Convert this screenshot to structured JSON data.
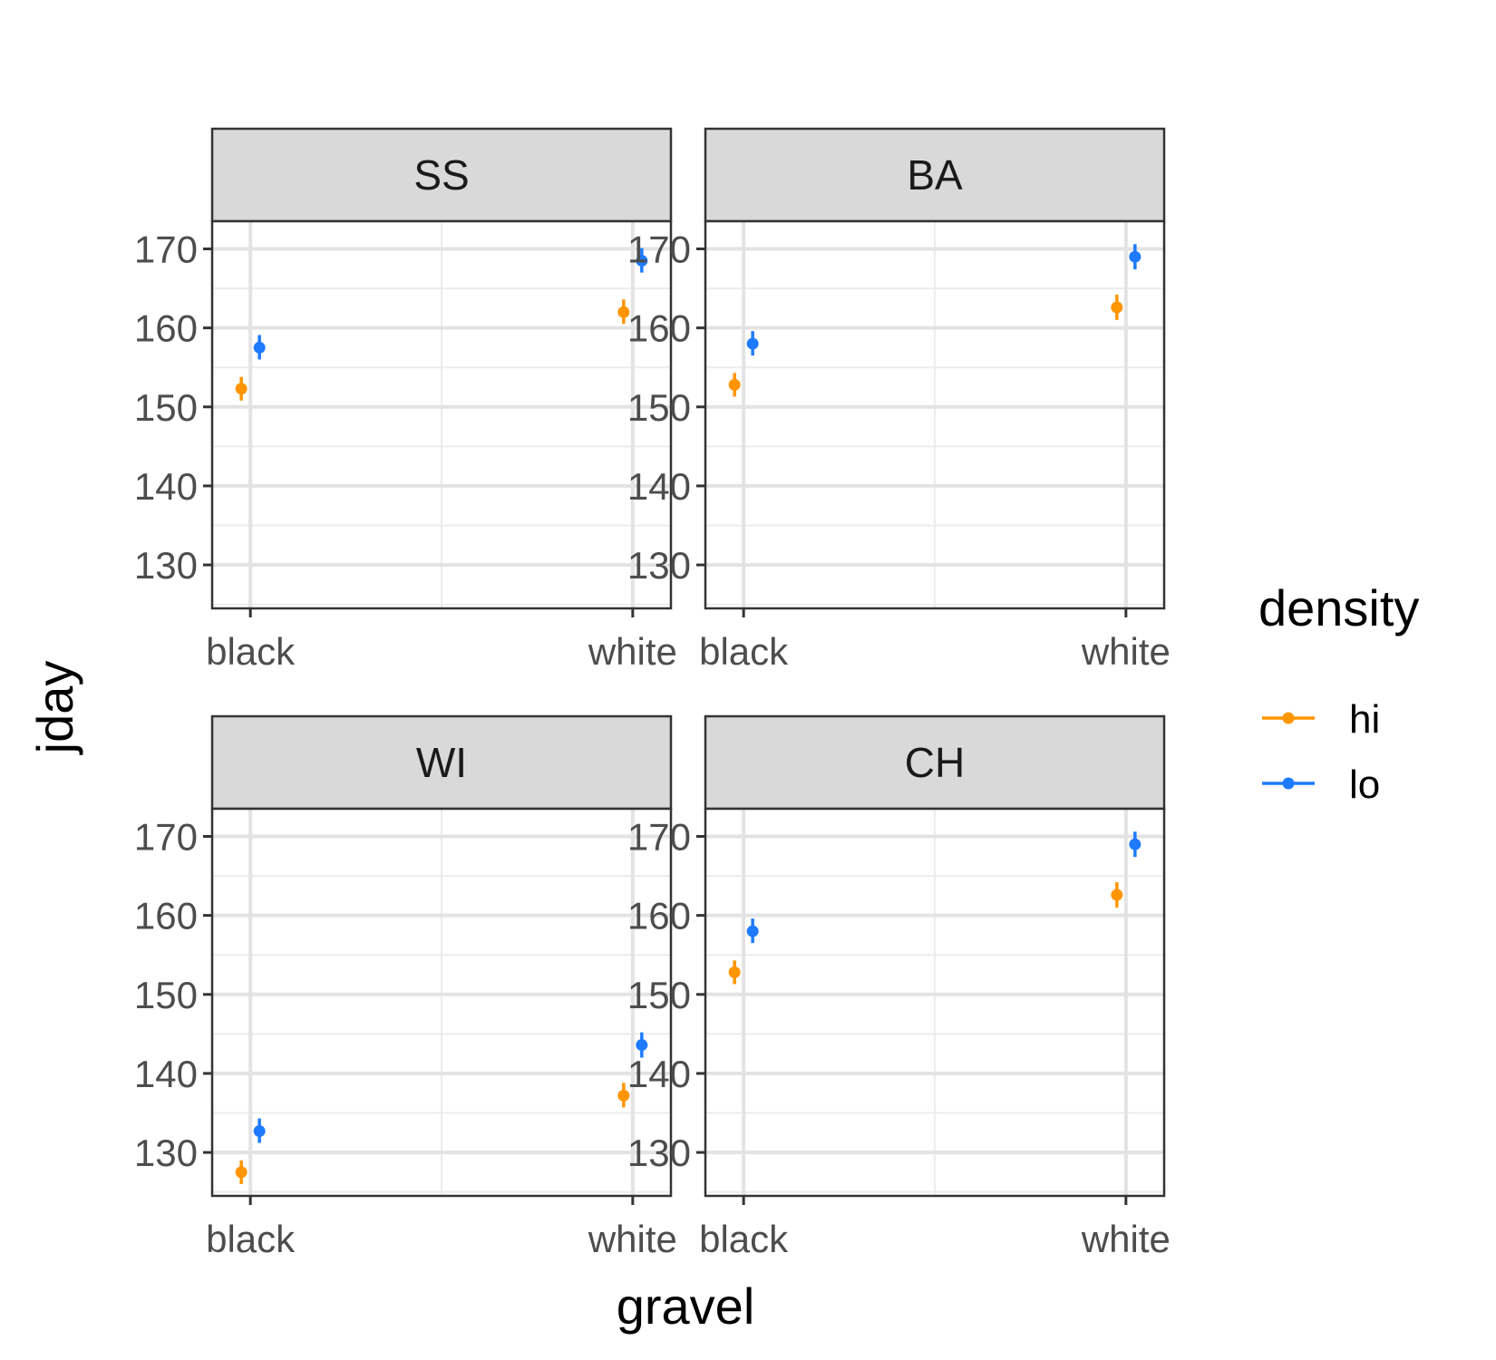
{
  "chart_data": {
    "type": "scatter",
    "xlabel": "gravel",
    "ylabel": "jday",
    "x_categories": [
      "black",
      "white"
    ],
    "yticks": [
      130,
      140,
      150,
      160,
      170
    ],
    "ylim": [
      124.5,
      173.5
    ],
    "facet_layout": "2x2",
    "grid": true,
    "legend": {
      "title": "density",
      "position": "right",
      "entries": [
        {
          "name": "hi",
          "color": "#FF9500"
        },
        {
          "name": "lo",
          "color": "#1E7BFF"
        }
      ]
    },
    "panels": [
      {
        "facet": "SS",
        "series": [
          {
            "name": "hi",
            "points": [
              {
                "x": "black",
                "y": 152.3,
                "ymin": 150.8,
                "ymax": 153.8
              },
              {
                "x": "white",
                "y": 162.0,
                "ymin": 160.5,
                "ymax": 163.6
              }
            ]
          },
          {
            "name": "lo",
            "points": [
              {
                "x": "black",
                "y": 157.5,
                "ymin": 156.0,
                "ymax": 159.1
              },
              {
                "x": "white",
                "y": 168.5,
                "ymin": 167.0,
                "ymax": 170.1
              }
            ]
          }
        ]
      },
      {
        "facet": "BA",
        "series": [
          {
            "name": "hi",
            "points": [
              {
                "x": "black",
                "y": 152.8,
                "ymin": 151.3,
                "ymax": 154.3
              },
              {
                "x": "white",
                "y": 162.6,
                "ymin": 161.0,
                "ymax": 164.2
              }
            ]
          },
          {
            "name": "lo",
            "points": [
              {
                "x": "black",
                "y": 158.0,
                "ymin": 156.5,
                "ymax": 159.6
              },
              {
                "x": "white",
                "y": 169.0,
                "ymin": 167.4,
                "ymax": 170.6
              }
            ]
          }
        ]
      },
      {
        "facet": "WI",
        "series": [
          {
            "name": "hi",
            "points": [
              {
                "x": "black",
                "y": 127.5,
                "ymin": 126.0,
                "ymax": 129.0
              },
              {
                "x": "white",
                "y": 137.2,
                "ymin": 135.7,
                "ymax": 138.8
              }
            ]
          },
          {
            "name": "lo",
            "points": [
              {
                "x": "black",
                "y": 132.7,
                "ymin": 131.2,
                "ymax": 134.3
              },
              {
                "x": "white",
                "y": 143.6,
                "ymin": 142.0,
                "ymax": 145.2
              }
            ]
          }
        ]
      },
      {
        "facet": "CH",
        "series": [
          {
            "name": "hi",
            "points": [
              {
                "x": "black",
                "y": 152.8,
                "ymin": 151.3,
                "ymax": 154.3
              },
              {
                "x": "white",
                "y": 162.6,
                "ymin": 161.0,
                "ymax": 164.2
              }
            ]
          },
          {
            "name": "lo",
            "points": [
              {
                "x": "black",
                "y": 158.0,
                "ymin": 156.5,
                "ymax": 159.6
              },
              {
                "x": "white",
                "y": 169.0,
                "ymin": 167.4,
                "ymax": 170.6
              }
            ]
          }
        ]
      }
    ]
  }
}
